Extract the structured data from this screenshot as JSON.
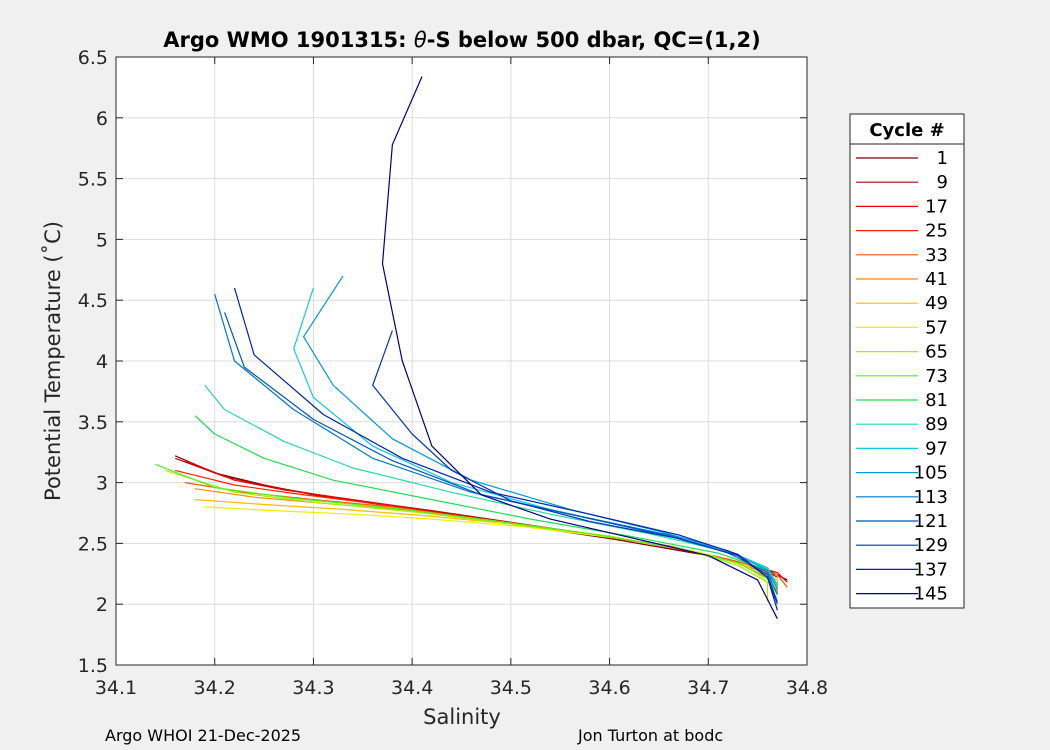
{
  "chart_data": {
    "type": "line",
    "title": "Argo WMO 1901315: θ-S below 500 dbar,  QC=(1,2)",
    "title_parts": {
      "prefix": "Argo WMO 1901315: ",
      "theta": "θ",
      "suffix": "-S below 500 dbar,  QC=(1,2)"
    },
    "xlabel": "Salinity",
    "ylabel": "Potential Temperature (˚C)",
    "xlim": [
      34.1,
      34.8
    ],
    "ylim": [
      1.5,
      6.5
    ],
    "xticks": [
      "34.1",
      "34.2",
      "34.3",
      "34.4",
      "34.5",
      "34.6",
      "34.7",
      "34.8"
    ],
    "yticks": [
      "1.5",
      "2",
      "2.5",
      "3",
      "3.5",
      "4",
      "4.5",
      "5",
      "5.5",
      "6",
      "6.5"
    ],
    "grid": true,
    "legend": {
      "title": "Cycle #",
      "position": "outside-right",
      "entries": [
        "1",
        "9",
        "17",
        "25",
        "33",
        "41",
        "49",
        "57",
        "65",
        "73",
        "81",
        "89",
        "97",
        "105",
        "113",
        "121",
        "129",
        "137",
        "145"
      ],
      "colors": [
        "#800000",
        "#b30000",
        "#e60000",
        "#ff2200",
        "#ff5500",
        "#ff8800",
        "#ffbb00",
        "#eeee00",
        "#aaee00",
        "#55ee22",
        "#22dd55",
        "#22dd99",
        "#11ccdd",
        "#0099dd",
        "#0077cc",
        "#0055bb",
        "#0033bb",
        "#0022aa",
        "#000088"
      ]
    },
    "series": [
      {
        "name": "1",
        "x": [
          34.16,
          34.2,
          34.25,
          34.3,
          34.4,
          34.5,
          34.6,
          34.7,
          34.76,
          34.78
        ],
        "y": [
          3.22,
          3.08,
          2.98,
          2.9,
          2.78,
          2.66,
          2.54,
          2.4,
          2.28,
          2.2
        ]
      },
      {
        "name": "9",
        "x": [
          34.16,
          34.21,
          34.26,
          34.32,
          34.42,
          34.52,
          34.62,
          34.71,
          34.76,
          34.77
        ],
        "y": [
          3.2,
          3.05,
          2.96,
          2.88,
          2.77,
          2.65,
          2.53,
          2.39,
          2.27,
          2.22
        ]
      },
      {
        "name": "17",
        "x": [
          34.17,
          34.22,
          34.27,
          34.34,
          34.44,
          34.54,
          34.64,
          34.72,
          34.77,
          34.78
        ],
        "y": [
          3.18,
          3.02,
          2.94,
          2.86,
          2.74,
          2.62,
          2.5,
          2.37,
          2.26,
          2.18
        ]
      },
      {
        "name": "25",
        "x": [
          34.16,
          34.22,
          34.28,
          34.35,
          34.45,
          34.55,
          34.65,
          34.72,
          34.76,
          34.77
        ],
        "y": [
          3.1,
          2.98,
          2.91,
          2.84,
          2.72,
          2.61,
          2.49,
          2.37,
          2.25,
          2.15
        ]
      },
      {
        "name": "33",
        "x": [
          34.17,
          34.23,
          34.3,
          34.38,
          34.46,
          34.56,
          34.66,
          34.73,
          34.77,
          34.78
        ],
        "y": [
          3.0,
          2.92,
          2.86,
          2.8,
          2.71,
          2.6,
          2.48,
          2.35,
          2.24,
          2.14
        ]
      },
      {
        "name": "41",
        "x": [
          34.18,
          34.24,
          34.31,
          34.4,
          34.48,
          34.58,
          34.67,
          34.73,
          34.76,
          34.77
        ],
        "y": [
          2.95,
          2.88,
          2.83,
          2.77,
          2.69,
          2.58,
          2.46,
          2.34,
          2.22,
          2.1
        ]
      },
      {
        "name": "49",
        "x": [
          34.18,
          34.25,
          34.33,
          34.41,
          34.5,
          34.6,
          34.68,
          34.74,
          34.77,
          34.77
        ],
        "y": [
          2.86,
          2.82,
          2.78,
          2.73,
          2.66,
          2.56,
          2.44,
          2.32,
          2.2,
          2.08
        ]
      },
      {
        "name": "57",
        "x": [
          34.19,
          34.26,
          34.34,
          34.42,
          34.51,
          34.61,
          34.69,
          34.74,
          34.76,
          34.76
        ],
        "y": [
          2.8,
          2.77,
          2.74,
          2.7,
          2.64,
          2.54,
          2.43,
          2.31,
          2.18,
          2.05
        ]
      },
      {
        "name": "65",
        "x": [
          34.15,
          34.22,
          34.3,
          34.4,
          34.5,
          34.6,
          34.68,
          34.73,
          34.76,
          34.76
        ],
        "y": [
          3.1,
          2.92,
          2.84,
          2.76,
          2.66,
          2.56,
          2.44,
          2.32,
          2.18,
          2.02
        ]
      },
      {
        "name": "73",
        "x": [
          34.14,
          34.2,
          34.28,
          34.38,
          34.48,
          34.58,
          34.67,
          34.73,
          34.76,
          34.77
        ],
        "y": [
          3.15,
          2.96,
          2.87,
          2.79,
          2.69,
          2.58,
          2.46,
          2.34,
          2.21,
          2.08
        ]
      },
      {
        "name": "81",
        "x": [
          34.18,
          34.2,
          34.25,
          34.32,
          34.42,
          34.52,
          34.62,
          34.71,
          34.76,
          34.77
        ],
        "y": [
          3.55,
          3.4,
          3.2,
          3.02,
          2.86,
          2.7,
          2.56,
          2.42,
          2.28,
          2.15
        ]
      },
      {
        "name": "89",
        "x": [
          34.19,
          34.21,
          34.27,
          34.34,
          34.44,
          34.54,
          34.64,
          34.72,
          34.76,
          34.77
        ],
        "y": [
          3.8,
          3.6,
          3.34,
          3.12,
          2.92,
          2.74,
          2.58,
          2.43,
          2.29,
          2.14
        ]
      },
      {
        "name": "97",
        "x": [
          34.3,
          34.28,
          34.3,
          34.36,
          34.44,
          34.54,
          34.64,
          34.72,
          34.76,
          34.77
        ],
        "y": [
          4.6,
          4.1,
          3.7,
          3.3,
          3.0,
          2.78,
          2.6,
          2.44,
          2.3,
          2.16
        ]
      },
      {
        "name": "105",
        "x": [
          34.33,
          34.29,
          34.32,
          34.38,
          34.46,
          34.56,
          34.65,
          34.72,
          34.76,
          34.77
        ],
        "y": [
          4.7,
          4.2,
          3.8,
          3.36,
          3.02,
          2.78,
          2.6,
          2.44,
          2.28,
          2.12
        ]
      },
      {
        "name": "113",
        "x": [
          34.2,
          34.22,
          34.28,
          34.36,
          34.46,
          34.56,
          34.66,
          34.72,
          34.76,
          34.77
        ],
        "y": [
          4.55,
          4.0,
          3.6,
          3.2,
          2.92,
          2.74,
          2.57,
          2.42,
          2.26,
          2.08
        ]
      },
      {
        "name": "121",
        "x": [
          34.21,
          34.23,
          34.3,
          34.38,
          34.47,
          34.57,
          34.66,
          34.73,
          34.76,
          34.77
        ],
        "y": [
          4.4,
          3.95,
          3.52,
          3.18,
          2.9,
          2.72,
          2.56,
          2.4,
          2.24,
          2.02
        ]
      },
      {
        "name": "129",
        "x": [
          34.38,
          34.36,
          34.4,
          34.44,
          34.5,
          34.58,
          34.67,
          34.73,
          34.76,
          34.77
        ],
        "y": [
          4.25,
          3.8,
          3.4,
          3.1,
          2.85,
          2.68,
          2.54,
          2.4,
          2.22,
          2.0
        ]
      },
      {
        "name": "137",
        "x": [
          34.22,
          34.24,
          34.31,
          34.39,
          34.48,
          34.58,
          34.67,
          34.73,
          34.76,
          34.77
        ],
        "y": [
          4.6,
          4.05,
          3.56,
          3.2,
          2.92,
          2.74,
          2.57,
          2.41,
          2.22,
          1.95
        ]
      },
      {
        "name": "145",
        "x": [
          34.41,
          34.38,
          34.37,
          34.39,
          34.42,
          34.47,
          34.54,
          34.62,
          34.7,
          34.75,
          34.77
        ],
        "y": [
          6.34,
          5.78,
          4.8,
          4.0,
          3.3,
          2.9,
          2.7,
          2.55,
          2.4,
          2.2,
          1.88
        ]
      }
    ]
  },
  "footer": {
    "left": "Argo WHOI 21-Dec-2025",
    "right": "Jon Turton at bodc"
  }
}
